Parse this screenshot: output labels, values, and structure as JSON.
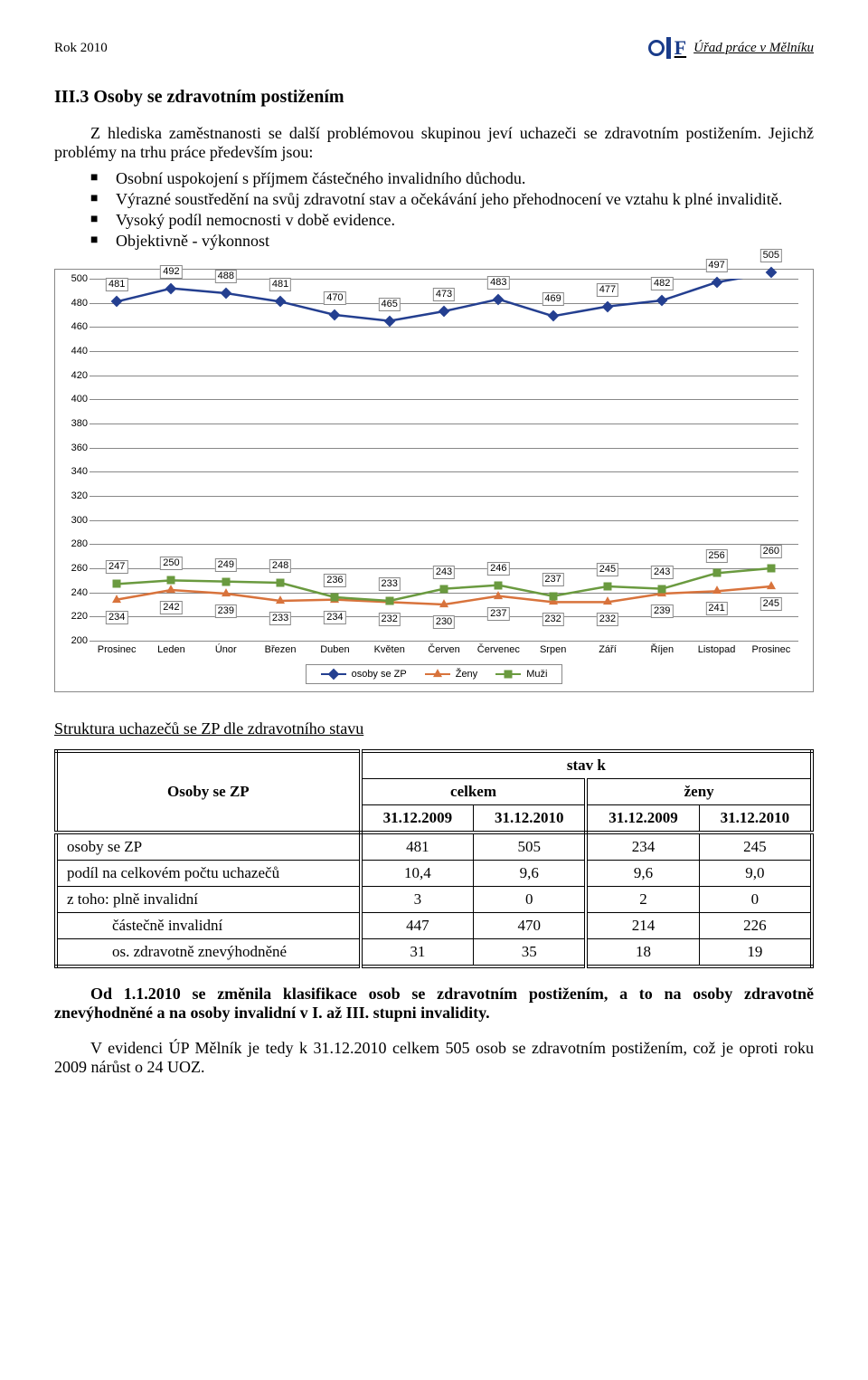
{
  "header": {
    "left": "Rok 2010",
    "right": "Úřad práce v Mělníku"
  },
  "section_title": "III.3 Osoby se zdravotním postižením",
  "intro": "Z hlediska zaměstnanosti se další problémovou skupinou jeví uchazeči se zdravotním postižením. Jejichž problémy na trhu práce především jsou:",
  "bullets": [
    "Osobní uspokojení s příjmem částečného invalidního důchodu.",
    "Výrazné soustředění na svůj zdravotní stav a očekávání jeho přehodnocení ve vztahu k plné invaliditě.",
    "Vysoký podíl nemocnosti v době evidence.",
    "Objektivně - výkonnost"
  ],
  "chart": {
    "ylim": [
      200,
      500
    ],
    "ytick_step": 20,
    "grid_color": "#888888",
    "background_color": "#ffffff",
    "categories": [
      "Prosinec",
      "Leden",
      "Únor",
      "Březen",
      "Duben",
      "Květen",
      "Červen",
      "Červenec",
      "Srpen",
      "Září",
      "Říjen",
      "Listopad",
      "Prosinec"
    ],
    "series": [
      {
        "name": "osoby se ZP",
        "color": "#243f90",
        "marker": "diamond",
        "lbl_offset": -26,
        "values": [
          481,
          492,
          488,
          481,
          470,
          465,
          473,
          483,
          469,
          477,
          482,
          497,
          505
        ]
      },
      {
        "name": "Ženy",
        "color": "#d8733c",
        "marker": "triangle",
        "lbl_offset": 12,
        "values": [
          234,
          242,
          239,
          233,
          234,
          232,
          230,
          237,
          232,
          232,
          239,
          241,
          245
        ]
      },
      {
        "name": "Muži",
        "color": "#6a9a3f",
        "marker": "square",
        "lbl_offset": -26,
        "values": [
          247,
          250,
          249,
          248,
          236,
          233,
          243,
          246,
          237,
          245,
          243,
          256,
          260
        ]
      }
    ],
    "label_fontsize": 11
  },
  "subhead": "Struktura uchazečů se ZP dle zdravotního stavu",
  "table": {
    "head": {
      "col1": "Osoby se ZP",
      "stav": "stav k",
      "celkem": "celkem",
      "zeny": "ženy",
      "d1": "31.12.2009",
      "d2": "31.12.2010"
    },
    "rows": [
      {
        "label": "osoby se ZP",
        "c1": "481",
        "c2": "505",
        "z1": "234",
        "z2": "245",
        "indent": false
      },
      {
        "label": "podíl na celkovém počtu uchazečů",
        "c1": "10,4",
        "c2": "9,6",
        "z1": "9,6",
        "z2": "9,0",
        "indent": false
      },
      {
        "label": "z toho: plně invalidní",
        "c1": "3",
        "c2": "0",
        "z1": "2",
        "z2": "0",
        "indent": false
      },
      {
        "label": "částečně invalidní",
        "c1": "447",
        "c2": "470",
        "z1": "214",
        "z2": "226",
        "indent": true
      },
      {
        "label": "os. zdravotně znevýhodněné",
        "c1": "31",
        "c2": "35",
        "z1": "18",
        "z2": "19",
        "indent": true
      }
    ]
  },
  "para1_a": "Od 1.1.2010 se změnila klasifikace osob se zdravotním postižením, a to na osoby zdravotně znevýhodněné a na osoby invalidní v I. až III. stupni invalidity.",
  "para2": "V evidenci ÚP Mělník je tedy k 31.12.2010 celkem 505 osob se zdravotním postižením, což je oproti roku 2009 nárůst o 24 UOZ."
}
